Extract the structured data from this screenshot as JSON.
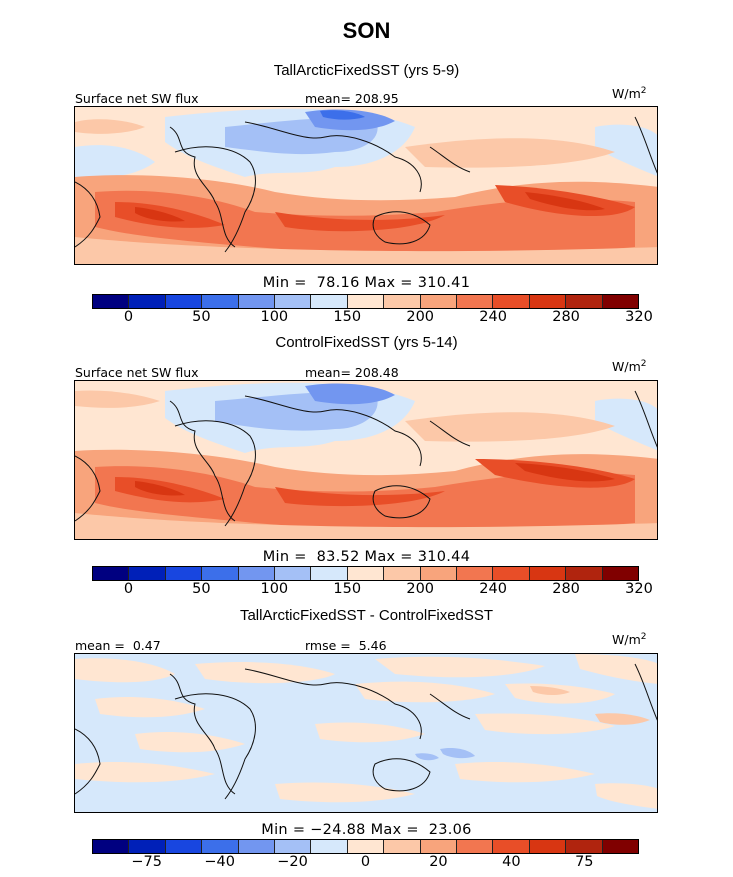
{
  "title": "SON",
  "colors": {
    "absolute_levels": [
      "#000080",
      "#0020B8",
      "#1846E0",
      "#3C6FEA",
      "#7296F0",
      "#A4C0F6",
      "#D6E8FB",
      "#FFE6D2",
      "#FCC8A8",
      "#F8A47C",
      "#F27650",
      "#E84E28",
      "#D83612",
      "#B0240E",
      "#800000"
    ],
    "diff_levels": [
      "#000080",
      "#0020B8",
      "#1846E0",
      "#3C6FEA",
      "#7296F0",
      "#A4C0F6",
      "#D6E8FB",
      "#FFE6D2",
      "#FCC8A8",
      "#F8A47C",
      "#F27650",
      "#E84E28",
      "#D83612",
      "#B0240E",
      "#800000"
    ]
  },
  "chart_data": [
    {
      "type": "heatmap",
      "title": "TallArcticFixedSST (yrs 5-9)",
      "variable_label": "Surface net SW flux",
      "stat_label": "mean=",
      "stat_value": "208.95",
      "units": "W/m",
      "units_exp": "2",
      "min_label": "Min =",
      "min_value": "78.16",
      "max_label": "Max =",
      "max_value": "310.41",
      "colorbar_ticks": [
        "0",
        "50",
        "100",
        "150",
        "200",
        "240",
        "280",
        "320"
      ]
    },
    {
      "type": "heatmap",
      "title": "ControlFixedSST (yrs 5-14)",
      "variable_label": "Surface net SW flux",
      "stat_label": "mean=",
      "stat_value": "208.48",
      "units": "W/m",
      "units_exp": "2",
      "min_label": "Min =",
      "min_value": "83.52",
      "max_label": "Max =",
      "max_value": "310.44",
      "colorbar_ticks": [
        "0",
        "50",
        "100",
        "150",
        "200",
        "240",
        "280",
        "320"
      ]
    },
    {
      "type": "heatmap",
      "title": "TallArcticFixedSST - ControlFixedSST",
      "stat_label": "mean =",
      "stat_value": "0.47",
      "stat2_label": "rmse =",
      "stat2_value": "5.46",
      "units": "W/m",
      "units_exp": "2",
      "min_label": "Min =",
      "min_value": "−24.88",
      "max_label": "Max =",
      "max_value": "23.06",
      "colorbar_ticks": [
        "−75",
        "−40",
        "−20",
        "0",
        "20",
        "40",
        "75"
      ]
    }
  ]
}
